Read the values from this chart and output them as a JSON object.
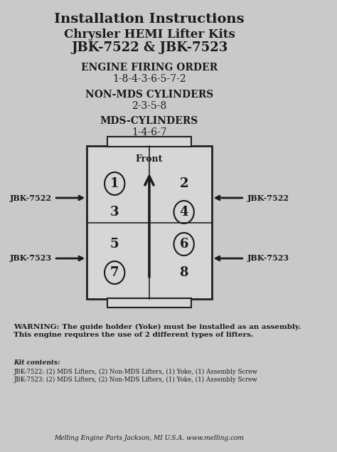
{
  "title_line1": "Installation Instructions",
  "title_line2": "Chrysler HEMI Lifter Kits",
  "title_line3": "JBK-7522 & JBK-7523",
  "section1_label": "ENGINE FIRING ORDER",
  "section1_value": "1-8-4-3-6-5-7-2",
  "section2_label": "NON-MDS CYLINDERS",
  "section2_value": "2-3-5-8",
  "section3_label": "MDS-CYLINDERS",
  "section3_value": "1-4-6-7",
  "front_label": "Front",
  "left_top_label": "JBK-7522",
  "right_top_label": "JBK-7522",
  "left_bottom_label": "JBK-7523",
  "right_bottom_label": "JBK-7523",
  "cylinders_left_col": [
    [
      "1",
      true
    ],
    [
      "3",
      false
    ],
    [
      "5",
      false
    ],
    [
      "7",
      true
    ]
  ],
  "cylinders_right_col": [
    [
      "2",
      false
    ],
    [
      "4",
      true
    ],
    [
      "6",
      true
    ],
    [
      "8",
      false
    ]
  ],
  "warning_text": "WARNING: The guide holder (Yoke) must be installed as an assembly.\nThis engine requires the use of 2 different types of lifters.",
  "kit_contents_title": "Kit contents:",
  "kit_line1": "JBK-7522: (2) MDS Lifters, (2) Non-MDS Lifters, (1) Yoke, (1) Assembly Screw",
  "kit_line2": "JBK-7523: (2) MDS Lifters, (2) Non-MDS Lifters, (1) Yoke, (1) Assembly Screw",
  "footer": "Melling Engine Parts Jackson, MI U.S.A. www.melling.com",
  "bg_color": "#cac9c9",
  "text_color": "#1a1a1a",
  "box_edge_color": "#222222"
}
